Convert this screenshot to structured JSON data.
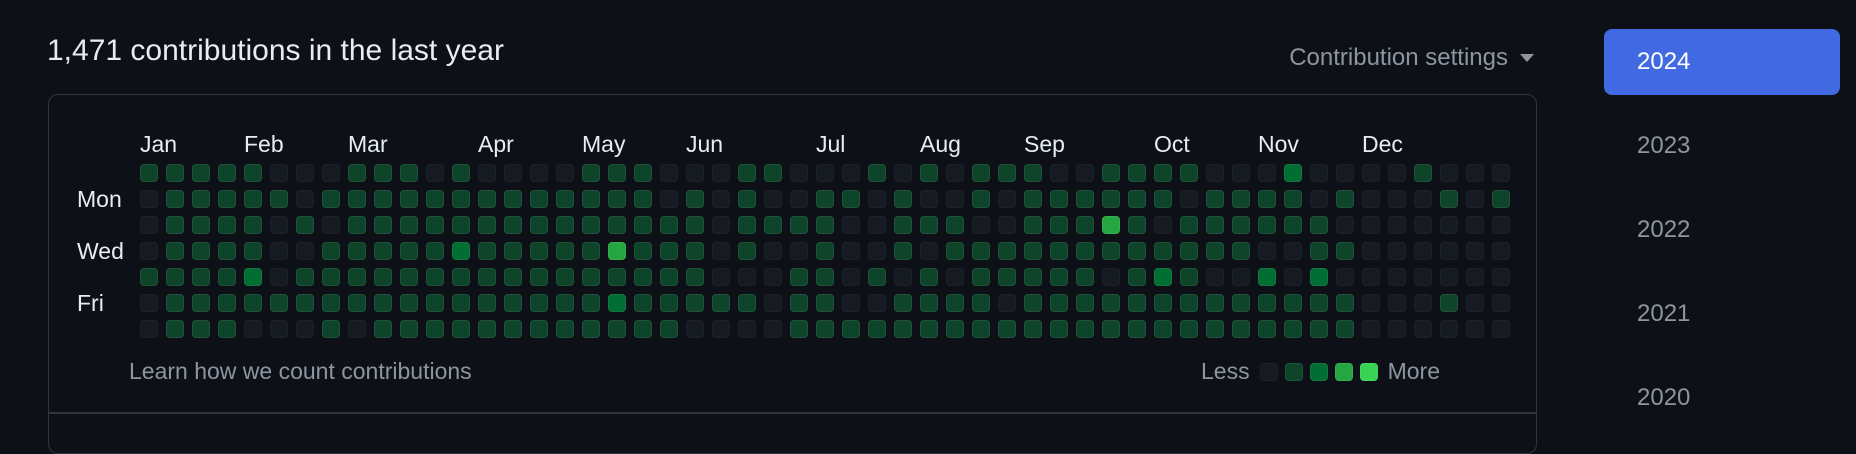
{
  "header": {
    "title": "1,471 contributions in the last year",
    "settings_label": "Contribution settings"
  },
  "months": [
    "Jan",
    "Feb",
    "Mar",
    "Apr",
    "May",
    "Jun",
    "Jul",
    "Aug",
    "Sep",
    "Oct",
    "Nov",
    "Dec"
  ],
  "days": [
    "Mon",
    "Wed",
    "Fri"
  ],
  "footer": {
    "link": "Learn how we count contributions",
    "less": "Less",
    "more": "More"
  },
  "years": [
    "2024",
    "2023",
    "2022",
    "2021",
    "2020"
  ],
  "colors": {
    "empty": "#161b22",
    "level1": "#0e4429",
    "level2": "#006d32",
    "level3": "#26a641",
    "level4": "#39d353",
    "accent": "#4169e1"
  },
  "contributions": {
    "weeks": 53,
    "levels": [
      "11111000111010000111000110001010111001111000200001000",
      "01111101111111111111010100110100101111110111101000101",
      "01111010111111111111110111100111001113101111110000000",
      "01111001111121111131110100100101111111111110011000000",
      "11112011111111111111110001101010111110121002020000000",
      "01111111111111111121111101100111101111111111111000100",
      "01110001011111111111100001111111111111111111111000000"
    ]
  }
}
